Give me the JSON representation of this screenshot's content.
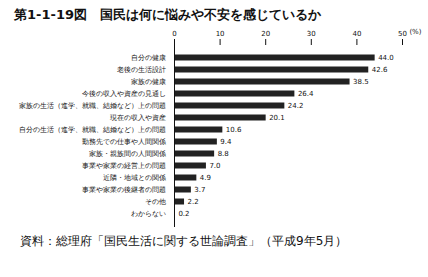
{
  "chart_data": {
    "type": "bar",
    "orientation": "horizontal",
    "title": "第1-1-19図　国民は何に悩みや不安を感じているか",
    "x_label": "(%)",
    "caption": "資料：総理府「国民生活に関する世論調査」（平成9年5月）",
    "categories": [
      "自分の健康",
      "老後の生活設計",
      "家族の健康",
      "今後の収入や資産の見通し",
      "家族の生活（進学、就職、結婚など）上の問題",
      "現在の収入や資産",
      "自分の生活（進学、就職、結婚など）上の問題",
      "勤務先での仕事や人間関係",
      "家族・親族間の人間関係",
      "事業や家業の経営上の問題",
      "近隣・地域との関係",
      "事業や家業の後継者の問題",
      "その他",
      "わからない"
    ],
    "values": [
      44.0,
      42.6,
      38.5,
      26.4,
      24.2,
      20.1,
      10.6,
      9.4,
      8.8,
      7.0,
      4.9,
      3.7,
      2.2,
      0.2
    ],
    "value_labels": [
      "44.0",
      "42.6",
      "38.5",
      "26.4",
      "24.2",
      "20.1",
      "10.6",
      "9.4",
      "8.8",
      "7.0",
      "4.9",
      "3.7",
      "2.2",
      "0.2"
    ],
    "data_labels": true,
    "color": "#222222",
    "xlim": [
      0,
      50
    ],
    "xticks": [
      0,
      10,
      20,
      30,
      40,
      50
    ],
    "grid": false
  }
}
